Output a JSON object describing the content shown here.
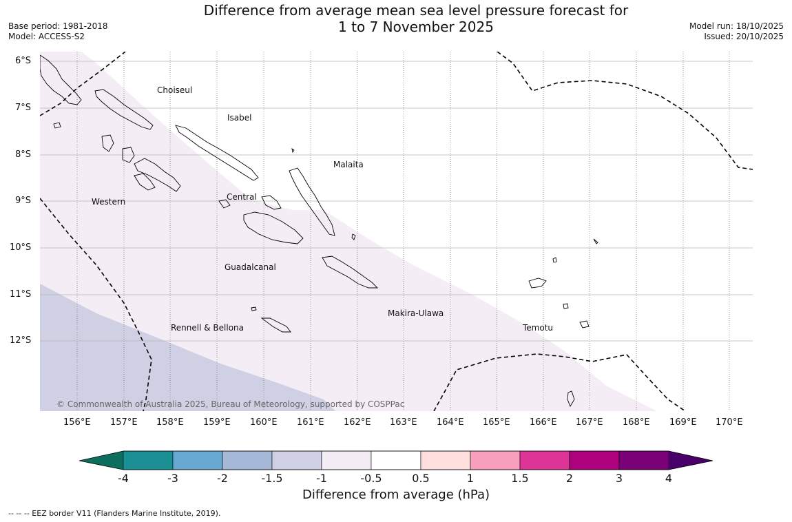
{
  "title_line1": "Difference from average mean sea level pressure forecast for",
  "title_line2": "1 to 7 November 2025",
  "base_period": "Base period: 1981-2018",
  "model": "Model: ACCESS-S2",
  "model_run": "Model run: 18/10/2025",
  "issued": "Issued: 20/10/2025",
  "lat_labels": [
    "6°S",
    "7°S",
    "8°S",
    "9°S",
    "10°S",
    "11°S",
    "12°S"
  ],
  "lon_labels": [
    "156°E",
    "157°E",
    "158°E",
    "159°E",
    "160°E",
    "161°E",
    "162°E",
    "163°E",
    "164°E",
    "165°E",
    "166°E",
    "167°E",
    "168°E",
    "169°E",
    "170°E"
  ],
  "provinces": [
    "Choiseul",
    "Isabel",
    "Malaita",
    "Western",
    "Central",
    "Guadalcanal",
    "Makira-Ulawa",
    "Rennell & Bellona",
    "Temotu"
  ],
  "copyright": "© Commonwealth of Australia 2025, Bureau of Meteorology, supported by COSPPac",
  "colorbar": {
    "title": "Difference from average (hPa)",
    "tick_labels": [
      "-4",
      "-3",
      "-2",
      "-1.5",
      "-1",
      "-0.5",
      "0.5",
      "1",
      "1.5",
      "2",
      "3",
      "4"
    ],
    "colors": [
      "#1a9094",
      "#68a9d2",
      "#a6b8d8",
      "#cfd0e3",
      "#f4edf5",
      "#ffffff",
      "#ffdede",
      "#f89fbd",
      "#dd3497",
      "#ae017e",
      "#7a0177"
    ],
    "low_extend_color": "#0c6f5e",
    "high_extend_color": "#49006a"
  },
  "legend_note": "--  --  -- EEZ border V11 (Flanders Marine Institute, 2019)."
}
